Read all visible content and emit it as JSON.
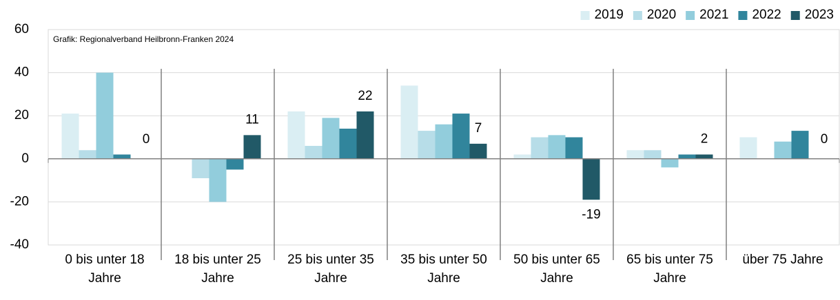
{
  "chart_data": {
    "type": "bar",
    "annotation": "Grafik: Regionalverband Heilbronn-Franken 2024",
    "categories": [
      "0 bis unter 18 Jahre",
      "18 bis unter 25 Jahre",
      "25 bis unter 35 Jahre",
      "35 bis unter 50 Jahre",
      "50 bis unter 65 Jahre",
      "65 bis unter 75 Jahre",
      "über 75 Jahre"
    ],
    "series": [
      {
        "name": "2019",
        "color": "#daeef3",
        "values": [
          21,
          0,
          22,
          34,
          2,
          4,
          10
        ]
      },
      {
        "name": "2020",
        "color": "#b7dde8",
        "values": [
          4,
          -9,
          6,
          13,
          10,
          4,
          0
        ]
      },
      {
        "name": "2021",
        "color": "#92cddc",
        "values": [
          40,
          -20,
          19,
          16,
          11,
          -4,
          8
        ]
      },
      {
        "name": "2022",
        "color": "#31859c",
        "values": [
          2,
          -5,
          14,
          21,
          10,
          2,
          13
        ]
      },
      {
        "name": "2023",
        "color": "#215967",
        "values": [
          0,
          11,
          22,
          7,
          -19,
          2,
          0
        ],
        "data_labels": true
      }
    ],
    "ylim": [
      -40,
      60
    ],
    "yticks": [
      -40,
      -20,
      0,
      20,
      40,
      60
    ],
    "grid": true,
    "legend": "top-right"
  }
}
